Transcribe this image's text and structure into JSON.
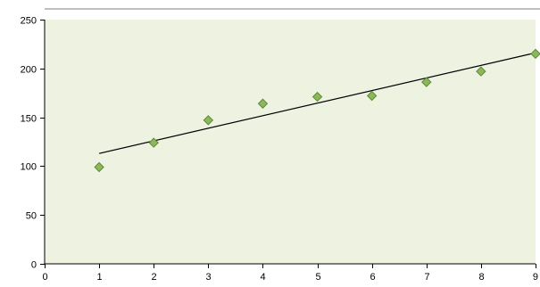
{
  "chart_data": {
    "type": "scatter",
    "title": "",
    "xlabel": "",
    "ylabel": "",
    "x": [
      1,
      2,
      3,
      4,
      5,
      6,
      7,
      8,
      9
    ],
    "y": [
      99,
      124,
      147,
      164,
      171,
      172,
      186,
      197,
      215
    ],
    "trendline": {
      "type": "linear",
      "x": [
        1,
        9
      ],
      "y": [
        113,
        216
      ]
    },
    "xlim": [
      0,
      9
    ],
    "ylim": [
      0,
      250
    ],
    "x_ticks": [
      "0",
      "1",
      "2",
      "3",
      "4",
      "5",
      "6",
      "7",
      "8",
      "9"
    ],
    "y_ticks": [
      "0",
      "50",
      "100",
      "150",
      "200",
      "250"
    ],
    "grid": false,
    "legend": "none",
    "colors": {
      "plot_background": "#eef2e1",
      "marker_fill": "#8db85a",
      "marker_stroke": "#5f8a3a",
      "trendline": "#000000",
      "axis": "#000000",
      "top_border": "#7f7f7f"
    }
  }
}
